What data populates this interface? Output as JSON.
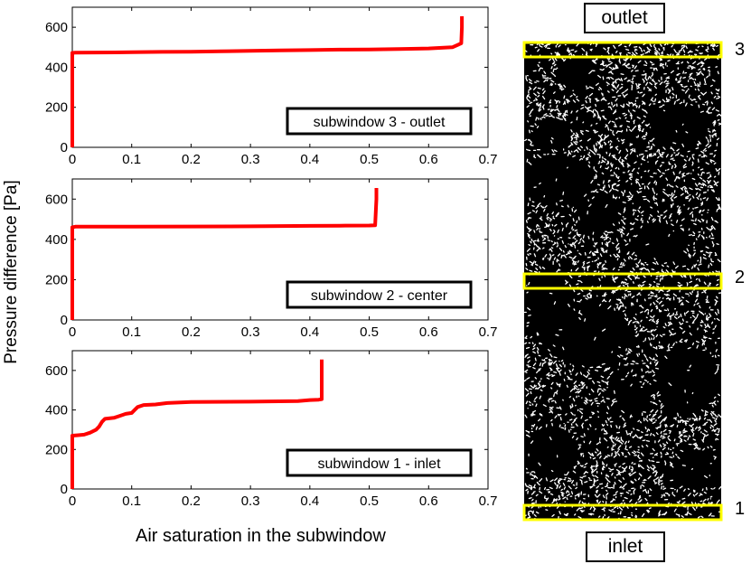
{
  "figure": {
    "ylabel": "Pressure difference [Pa]",
    "xlabel": "Air saturation in the subwindow",
    "outlet_label": "outlet",
    "inlet_label": "inlet",
    "window_markers": [
      "3",
      "2",
      "1"
    ],
    "colors": {
      "curve": "#ff0000",
      "window_box": "#ffff00",
      "image_bg": "#000000"
    }
  },
  "chart_data": [
    {
      "type": "line",
      "annotation": "subwindow 3 - outlet",
      "xlim": [
        0,
        0.7
      ],
      "ylim": [
        0,
        700
      ],
      "xticks": [
        "0",
        "0.1",
        "0.2",
        "0.3",
        "0.4",
        "0.5",
        "0.6",
        "0.7"
      ],
      "yticks": [
        "0",
        "200",
        "400",
        "600"
      ],
      "grid": false,
      "series": [
        {
          "x": [
            0,
            0,
            0,
            0.005,
            0.1,
            0.15,
            0.2,
            0.25,
            0.3,
            0.35,
            0.4,
            0.45,
            0.5,
            0.55,
            0.6,
            0.64,
            0.655,
            0.656,
            0.656
          ],
          "y": [
            0,
            450,
            472,
            473,
            475,
            477,
            478,
            480,
            482,
            484,
            486,
            488,
            489,
            491,
            494,
            500,
            520,
            600,
            655
          ]
        }
      ]
    },
    {
      "type": "line",
      "annotation": "subwindow 2 - center",
      "xlim": [
        0,
        0.7
      ],
      "ylim": [
        0,
        700
      ],
      "xticks": [
        "0",
        "0.1",
        "0.2",
        "0.3",
        "0.4",
        "0.5",
        "0.6",
        "0.7"
      ],
      "yticks": [
        "0",
        "200",
        "400",
        "600"
      ],
      "grid": false,
      "series": [
        {
          "x": [
            0,
            0,
            0.005,
            0.1,
            0.2,
            0.3,
            0.4,
            0.45,
            0.5,
            0.51,
            0.512,
            0.512
          ],
          "y": [
            0,
            460,
            463,
            463,
            464,
            465,
            467,
            468,
            469,
            470,
            600,
            655
          ]
        }
      ]
    },
    {
      "type": "line",
      "annotation": "subwindow 1 - inlet",
      "xlim": [
        0,
        0.7
      ],
      "ylim": [
        0,
        700
      ],
      "xticks": [
        "0",
        "0.1",
        "0.2",
        "0.3",
        "0.4",
        "0.5",
        "0.6",
        "0.7"
      ],
      "yticks": [
        "0",
        "200",
        "400",
        "600"
      ],
      "grid": false,
      "series": [
        {
          "x": [
            0,
            0,
            0.01,
            0.02,
            0.03,
            0.04,
            0.045,
            0.05,
            0.055,
            0.07,
            0.08,
            0.09,
            0.1,
            0.105,
            0.11,
            0.12,
            0.14,
            0.16,
            0.2,
            0.3,
            0.38,
            0.4,
            0.415,
            0.42,
            0.42,
            0.42
          ],
          "y": [
            0,
            270,
            272,
            275,
            285,
            300,
            315,
            340,
            355,
            360,
            370,
            380,
            385,
            400,
            415,
            425,
            428,
            435,
            440,
            442,
            445,
            450,
            452,
            455,
            600,
            655
          ]
        }
      ]
    }
  ]
}
